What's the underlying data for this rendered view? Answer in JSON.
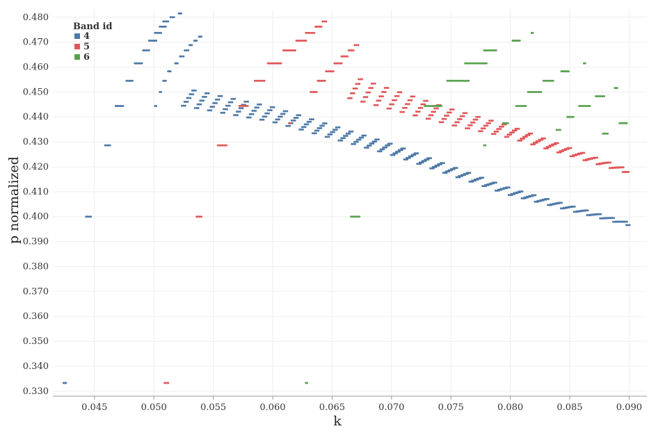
{
  "chart_data": {
    "type": "scatter",
    "title": "",
    "xlabel": "k",
    "ylabel": "p normalized",
    "xlim": [
      0.0415,
      0.0915
    ],
    "ylim": [
      0.328,
      0.483
    ],
    "x_ticks": [
      "0.045",
      "0.050",
      "0.055",
      "0.060",
      "0.065",
      "0.070",
      "0.075",
      "0.080",
      "0.085",
      "0.090"
    ],
    "y_ticks": [
      "0.480",
      "0.470",
      "0.460",
      "0.450",
      "0.440",
      "0.430",
      "0.420",
      "0.410",
      "0.400",
      "0.390",
      "0.380",
      "0.370",
      "0.360",
      "0.350",
      "0.340",
      "0.330"
    ],
    "grid": true,
    "legend": {
      "title": "Band id",
      "position": "top-left"
    },
    "series": [
      {
        "name": "4",
        "color": "#4e79a7",
        "segments": [
          {
            "x": [
              0.0424,
              0.0426
            ],
            "y": 0.3333
          },
          {
            "x": [
              0.0443,
              0.0447
            ],
            "y": 0.4
          },
          {
            "x": [
              0.0459,
              0.0463
            ],
            "y": 0.4286
          },
          {
            "x": [
              0.0468,
              0.0474
            ],
            "y": 0.4444
          },
          {
            "x": [
              0.0477,
              0.0482
            ],
            "y": 0.4545
          },
          {
            "x": [
              0.0484,
              0.049
            ],
            "y": 0.4615
          },
          {
            "x": [
              0.0491,
              0.0496
            ],
            "y": 0.4667
          },
          {
            "x": [
              0.0496,
              0.0502
            ],
            "y": 0.4706
          },
          {
            "x": [
              0.0501,
              0.0506
            ],
            "y": 0.4737
          },
          {
            "x": [
              0.0505,
              0.051
            ],
            "y": 0.4762
          },
          {
            "x": [
              0.0508,
              0.0512
            ],
            "y": 0.4783
          },
          {
            "x": [
              0.0514,
              0.0517
            ],
            "y": 0.48
          },
          {
            "x": [
              0.0521,
              0.0523
            ],
            "y": 0.4815
          },
          {
            "x": [
              0.0501,
              0.0502
            ],
            "y": 0.4444
          },
          {
            "x": [
              0.0505,
              0.0506
            ],
            "y": 0.45
          },
          {
            "x": [
              0.0508,
              0.051
            ],
            "y": 0.4545
          },
          {
            "x": [
              0.0512,
              0.0514
            ],
            "y": 0.4583
          },
          {
            "x": [
              0.0518,
              0.052
            ],
            "y": 0.4615
          },
          {
            "x": [
              0.0522,
              0.0525
            ],
            "y": 0.4643
          },
          {
            "x": [
              0.0526,
              0.0529
            ],
            "y": 0.4667
          },
          {
            "x": [
              0.053,
              0.0532
            ],
            "y": 0.4688
          },
          {
            "x": [
              0.0534,
              0.0536
            ],
            "y": 0.4706
          },
          {
            "x": [
              0.0538,
              0.054
            ],
            "y": 0.4722
          }
        ],
        "band": [
          {
            "x": 0.0525,
            "y": 0.448
          },
          {
            "x": 0.06,
            "y": 0.441
          },
          {
            "x": 0.07,
            "y": 0.427
          },
          {
            "x": 0.08,
            "y": 0.41
          },
          {
            "x": 0.09,
            "y": 0.397
          }
        ]
      },
      {
        "name": "5",
        "color": "#e15759",
        "segments": [
          {
            "x": [
              0.0509,
              0.0512
            ],
            "y": 0.3333
          },
          {
            "x": [
              0.0536,
              0.054
            ],
            "y": 0.4
          },
          {
            "x": [
              0.0554,
              0.0561
            ],
            "y": 0.4286
          },
          {
            "x": [
              0.0572,
              0.0579
            ],
            "y": 0.4444
          },
          {
            "x": [
              0.0585,
              0.0593
            ],
            "y": 0.4545
          },
          {
            "x": [
              0.0596,
              0.0607
            ],
            "y": 0.4615
          },
          {
            "x": [
              0.0609,
              0.0619
            ],
            "y": 0.4667
          },
          {
            "x": [
              0.062,
              0.0628
            ],
            "y": 0.4706
          },
          {
            "x": [
              0.0628,
              0.0635
            ],
            "y": 0.4737
          },
          {
            "x": [
              0.0636,
              0.0641
            ],
            "y": 0.4762
          },
          {
            "x": [
              0.0642,
              0.0645
            ],
            "y": 0.4783
          },
          {
            "x": [
              0.0614,
              0.0615
            ],
            "y": 0.4375
          },
          {
            "x": [
              0.0632,
              0.0637
            ],
            "y": 0.45
          },
          {
            "x": [
              0.0638,
              0.0644
            ],
            "y": 0.4545
          },
          {
            "x": [
              0.0645,
              0.0651
            ],
            "y": 0.4583
          },
          {
            "x": [
              0.0652,
              0.0658
            ],
            "y": 0.4615
          },
          {
            "x": [
              0.0658,
              0.0663
            ],
            "y": 0.4643
          },
          {
            "x": [
              0.0664,
              0.0668
            ],
            "y": 0.4667
          },
          {
            "x": [
              0.0669,
              0.0672
            ],
            "y": 0.4688
          }
        ],
        "band": [
          {
            "x": 0.0665,
            "y": 0.452
          },
          {
            "x": 0.075,
            "y": 0.44
          },
          {
            "x": 0.08,
            "y": 0.434
          },
          {
            "x": 0.09,
            "y": 0.418
          }
        ]
      },
      {
        "name": "6",
        "color": "#59a14f",
        "segments": [
          {
            "x": [
              0.0628,
              0.0629
            ],
            "y": 0.3333
          },
          {
            "x": [
              0.0666,
              0.0673
            ],
            "y": 0.4
          },
          {
            "x": [
              0.0778,
              0.0779
            ],
            "y": 0.4286
          },
          {
            "x": [
              0.0728,
              0.0742
            ],
            "y": 0.4444
          },
          {
            "x": [
              0.0747,
              0.0765
            ],
            "y": 0.4545
          },
          {
            "x": [
              0.0762,
              0.078
            ],
            "y": 0.4615
          },
          {
            "x": [
              0.0778,
              0.0788
            ],
            "y": 0.4667
          },
          {
            "x": [
              0.0802,
              0.0808
            ],
            "y": 0.4706
          },
          {
            "x": [
              0.0818,
              0.0819
            ],
            "y": 0.4737
          },
          {
            "x": [
              0.0794,
              0.0798
            ],
            "y": 0.4375
          },
          {
            "x": [
              0.0805,
              0.0813
            ],
            "y": 0.4444
          },
          {
            "x": [
              0.0815,
              0.0826
            ],
            "y": 0.45
          },
          {
            "x": [
              0.0828,
              0.0836
            ],
            "y": 0.4545
          },
          {
            "x": [
              0.0843,
              0.0849
            ],
            "y": 0.4583
          },
          {
            "x": [
              0.0862,
              0.0863
            ],
            "y": 0.4615
          },
          {
            "x": [
              0.0839,
              0.0842
            ],
            "y": 0.4348
          },
          {
            "x": [
              0.0848,
              0.0853
            ],
            "y": 0.44
          },
          {
            "x": [
              0.0858,
              0.0867
            ],
            "y": 0.4444
          },
          {
            "x": [
              0.0872,
              0.0879
            ],
            "y": 0.4483
          },
          {
            "x": [
              0.0888,
              0.089
            ],
            "y": 0.4516
          },
          {
            "x": [
              0.0878,
              0.0882
            ],
            "y": 0.4333
          },
          {
            "x": [
              0.0892,
              0.0898
            ],
            "y": 0.4375
          }
        ]
      }
    ]
  }
}
